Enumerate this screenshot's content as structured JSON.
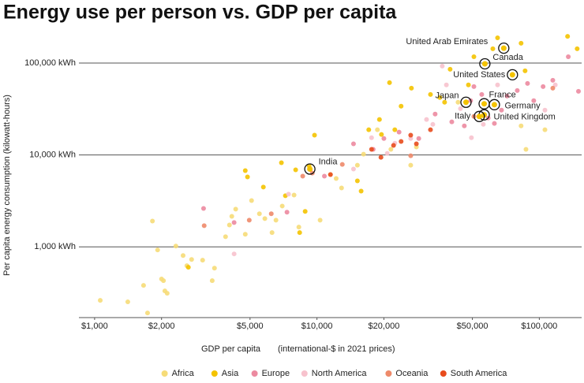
{
  "chart_data": {
    "type": "scatter",
    "title": "Energy use per person vs. GDP per capita",
    "x_label": "GDP per capita",
    "x_label_note": "(international-$ in 2021 prices)",
    "y_label": "Per capita energy consumption (kilowatt-hours)",
    "log_x": true,
    "log_y": true,
    "grid": "y",
    "legend": "bottom",
    "xlim": [
      850,
      155000
    ],
    "ylim": [
      170,
      220000
    ],
    "xticks": [
      {
        "value": 1000,
        "label": "$1,000"
      },
      {
        "value": 2000,
        "label": "$2,000"
      },
      {
        "value": 5000,
        "label": "$5,000"
      },
      {
        "value": 10000,
        "label": "$10,000"
      },
      {
        "value": 20000,
        "label": "$20,000"
      },
      {
        "value": 50000,
        "label": "$50,000"
      },
      {
        "value": 100000,
        "label": "$100,000"
      }
    ],
    "yticks": [
      {
        "value": 1000,
        "label": "1,000 kWh"
      },
      {
        "value": 10000,
        "label": "10,000 kWh"
      },
      {
        "value": 100000,
        "label": "100,000 kWh"
      }
    ],
    "series": [
      {
        "name": "Africa",
        "color": "#f6dc78",
        "x": [
          1060,
          1410,
          1730,
          1660,
          1820,
          2000,
          2070,
          2040,
          2120,
          1920,
          2320,
          2500,
          2600,
          2730,
          3060,
          3380,
          3460,
          3880,
          4040,
          4140,
          4310,
          4760,
          5080,
          5510,
          5830,
          6280,
          6540,
          6980,
          7890,
          8290,
          10330,
          11500,
          12200,
          12900,
          15200,
          16200,
          18700,
          21500,
          26400,
          28000,
          106000,
          82800,
          87100,
          43100
        ],
        "y": [
          262,
          252,
          191,
          381,
          1910,
          447,
          332,
          429,
          313,
          925,
          1020,
          805,
          624,
          729,
          716,
          429,
          587,
          1290,
          1730,
          2150,
          2570,
          1370,
          3190,
          2290,
          2030,
          1430,
          1950,
          2780,
          3660,
          1640,
          1950,
          6110,
          5540,
          4370,
          7740,
          10200,
          18800,
          11500,
          7740,
          12200,
          18800,
          20700,
          11500,
          37400
        ]
      },
      {
        "name": "Asia",
        "color": "#f4c300",
        "x": [
          2640,
          4760,
          4870,
          5740,
          6920,
          7210,
          8020,
          8360,
          8850,
          9220,
          9750,
          15200,
          17100,
          19100,
          21200,
          15800,
          19500,
          22400,
          23900,
          26600,
          32400,
          35700,
          37500,
          39700,
          50800,
          61800,
          64900,
          82800,
          134000,
          148000,
          86300,
          48000,
          56000
        ],
        "y": [
          600,
          6750,
          5770,
          4470,
          8220,
          3600,
          6880,
          1430,
          2430,
          7590,
          16400,
          5220,
          18800,
          24300,
          61100,
          4040,
          16700,
          18800,
          33900,
          53200,
          45500,
          42100,
          37400,
          85500,
          117000,
          143000,
          188000,
          164000,
          195000,
          143000,
          82200,
          57700,
          26700
        ]
      },
      {
        "name": "Europe",
        "color": "#ec8aa0",
        "x": [
          3090,
          4240,
          7330,
          10800,
          14600,
          17900,
          20000,
          23400,
          28700,
          34000,
          40400,
          46000,
          49100,
          55100,
          58900,
          62800,
          71600,
          79600,
          88500,
          94400,
          104000,
          115000,
          135000,
          150000,
          50800,
          67600
        ],
        "y": [
          2620,
          1840,
          2380,
          5880,
          13200,
          11500,
          15100,
          17700,
          15100,
          27800,
          22900,
          20700,
          38900,
          45500,
          25200,
          22000,
          43700,
          50200,
          60000,
          38900,
          55400,
          64900,
          117000,
          49200,
          55400,
          30700
        ]
      },
      {
        "name": "North America",
        "color": "#f7c2cd",
        "x": [
          4240,
          7450,
          14600,
          17600,
          20700,
          22400,
          26400,
          31100,
          33200,
          38200,
          36600,
          44200,
          49500,
          56000,
          64900,
          106000,
          118000
        ],
        "y": [
          838,
          3740,
          7020,
          15400,
          10400,
          13400,
          15100,
          24300,
          21500,
          57700,
          92500,
          31900,
          15400,
          21500,
          57700,
          30700,
          57700
        ]
      },
      {
        "name": "Oceania",
        "color": "#ee8a6a",
        "x": [
          3110,
          4960,
          6230,
          8630,
          9530,
          13000,
          26400,
          50800,
          115000
        ],
        "y": [
          1700,
          1950,
          2290,
          5880,
          6350,
          7890,
          9800,
          26200,
          53200
        ]
      },
      {
        "name": "South America",
        "color": "#e84b1c",
        "x": [
          17600,
          19400,
          22100,
          23900,
          26400,
          28000,
          32400,
          11500
        ],
        "y": [
          11500,
          9420,
          12700,
          14000,
          16400,
          13200,
          18800,
          6110
        ]
      }
    ],
    "annotations": [
      {
        "label": "United Arab Emirates",
        "x": 69200,
        "y": 145000
      },
      {
        "label": "Canada",
        "x": 56900,
        "y": 98000
      },
      {
        "label": "United States",
        "x": 75700,
        "y": 74500
      },
      {
        "label": "Japan",
        "x": 46800,
        "y": 37400
      },
      {
        "label": "France",
        "x": 56500,
        "y": 36000
      },
      {
        "label": "Germany",
        "x": 62800,
        "y": 35200
      },
      {
        "label": "United Kingdom",
        "x": 56500,
        "y": 27300
      },
      {
        "label": "Italy",
        "x": 53700,
        "y": 26200
      },
      {
        "label": "India",
        "x": 9290,
        "y": 7020
      }
    ]
  }
}
